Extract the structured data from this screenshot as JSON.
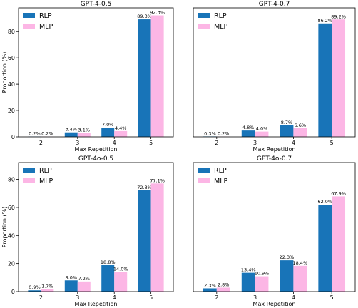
{
  "chart_data": [
    {
      "type": "bar",
      "title": "GPT-4-0.5",
      "xlabel": "Max Repetition",
      "ylabel": "Proportion (%)",
      "categories": [
        "2",
        "3",
        "4",
        "5"
      ],
      "ylim": [
        0,
        98
      ],
      "yticks": [
        0,
        20,
        40,
        60,
        80
      ],
      "legend": "top-left",
      "series": [
        {
          "name": "RLP",
          "color": "#1874b8",
          "values": [
            0.2,
            3.4,
            7.0,
            89.3
          ],
          "labels": [
            "0.2%",
            "3.4%",
            "7.0%",
            "89.3%"
          ]
        },
        {
          "name": "MLP",
          "color": "#fcb6e5",
          "values": [
            0.2,
            3.1,
            4.4,
            92.3
          ],
          "labels": [
            "0.2%",
            "3.1%",
            "4.4%",
            "92.3%"
          ]
        }
      ]
    },
    {
      "type": "bar",
      "title": "GPT-4-0.7",
      "xlabel": "Max Repetition",
      "ylabel": "",
      "categories": [
        "2",
        "3",
        "4",
        "5"
      ],
      "ylim": [
        0,
        98
      ],
      "yticks": [],
      "legend": "top-left",
      "series": [
        {
          "name": "RLP",
          "color": "#1874b8",
          "values": [
            0.3,
            4.8,
            8.7,
            86.2
          ],
          "labels": [
            "0.3%",
            "4.8%",
            "8.7%",
            "86.2%"
          ]
        },
        {
          "name": "MLP",
          "color": "#fcb6e5",
          "values": [
            0.2,
            4.0,
            6.6,
            89.2
          ],
          "labels": [
            "0.2%",
            "4.0%",
            "6.6%",
            "89.2%"
          ]
        }
      ]
    },
    {
      "type": "bar",
      "title": "GPT-4o-0.5",
      "xlabel": "Max Repetition",
      "ylabel": "Proportion (%)",
      "categories": [
        "2",
        "3",
        "4",
        "5"
      ],
      "ylim": [
        0,
        92
      ],
      "yticks": [
        0,
        20,
        40,
        60,
        80
      ],
      "legend": "top-left",
      "series": [
        {
          "name": "RLP",
          "color": "#1874b8",
          "values": [
            0.9,
            8.0,
            18.8,
            72.3
          ],
          "labels": [
            "0.9%",
            "8.0%",
            "18.8%",
            "72.3%"
          ]
        },
        {
          "name": "MLP",
          "color": "#fcb6e5",
          "values": [
            1.7,
            7.2,
            14.0,
            77.1
          ],
          "labels": [
            "1.7%",
            "7.2%",
            "14.0%",
            "77.1%"
          ]
        }
      ]
    },
    {
      "type": "bar",
      "title": "GPT-4o-0.7",
      "xlabel": "Max Repetition",
      "ylabel": "",
      "categories": [
        "2",
        "3",
        "4",
        "5"
      ],
      "ylim": [
        0,
        92
      ],
      "yticks": [],
      "legend": "top-left",
      "series": [
        {
          "name": "RLP",
          "color": "#1874b8",
          "values": [
            2.3,
            13.4,
            22.3,
            62.0
          ],
          "labels": [
            "2.3%",
            "13.4%",
            "22.3%",
            "62.0%"
          ]
        },
        {
          "name": "MLP",
          "color": "#fcb6e5",
          "values": [
            2.8,
            10.9,
            18.4,
            67.9
          ],
          "labels": [
            "2.8%",
            "10.9%",
            "18.4%",
            "67.9%"
          ]
        }
      ]
    }
  ]
}
